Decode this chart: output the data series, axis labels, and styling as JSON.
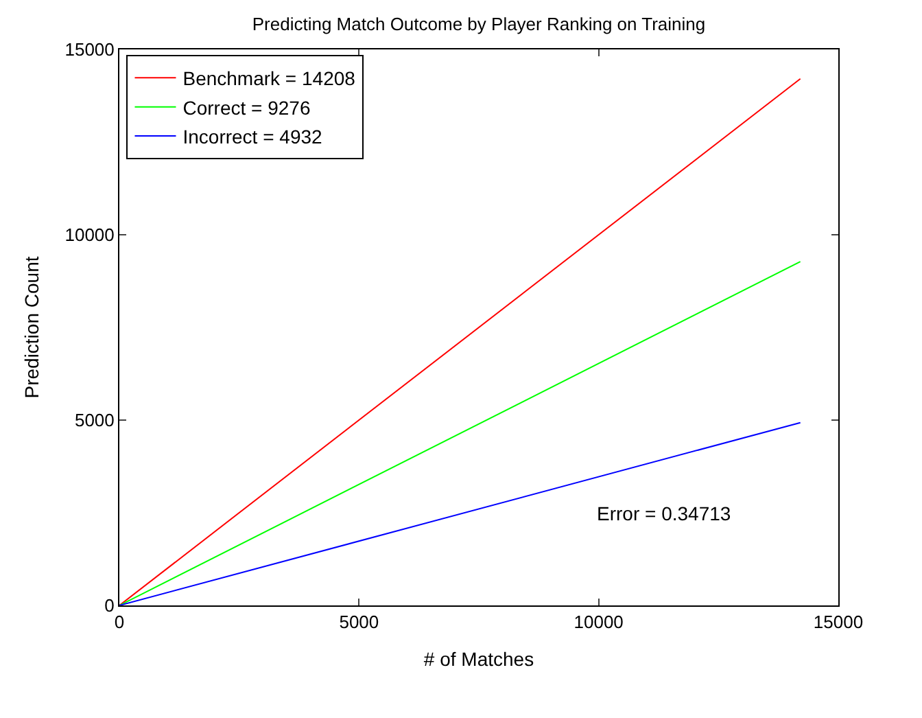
{
  "chart_data": {
    "type": "line",
    "title": "Predicting Match Outcome by Player Ranking on Training",
    "xlabel": "# of Matches",
    "ylabel": "Prediction Count",
    "x": [
      0,
      14208
    ],
    "series": [
      {
        "name": "Benchmark = 14208",
        "color": "#ff0000",
        "values": [
          0,
          14208
        ]
      },
      {
        "name": "Correct = 9276",
        "color": "#00ff00",
        "values": [
          0,
          9276
        ]
      },
      {
        "name": "Incorrect = 4932",
        "color": "#0000ff",
        "values": [
          0,
          4932
        ]
      }
    ],
    "xlim": [
      0,
      15000
    ],
    "ylim": [
      0,
      15000
    ],
    "xticks": [
      0,
      5000,
      10000,
      15000
    ],
    "yticks": [
      0,
      5000,
      10000,
      15000
    ],
    "annotations": [
      "Error = 0.34713"
    ],
    "legend": "top left",
    "marker": "none",
    "line_style": "solid"
  }
}
